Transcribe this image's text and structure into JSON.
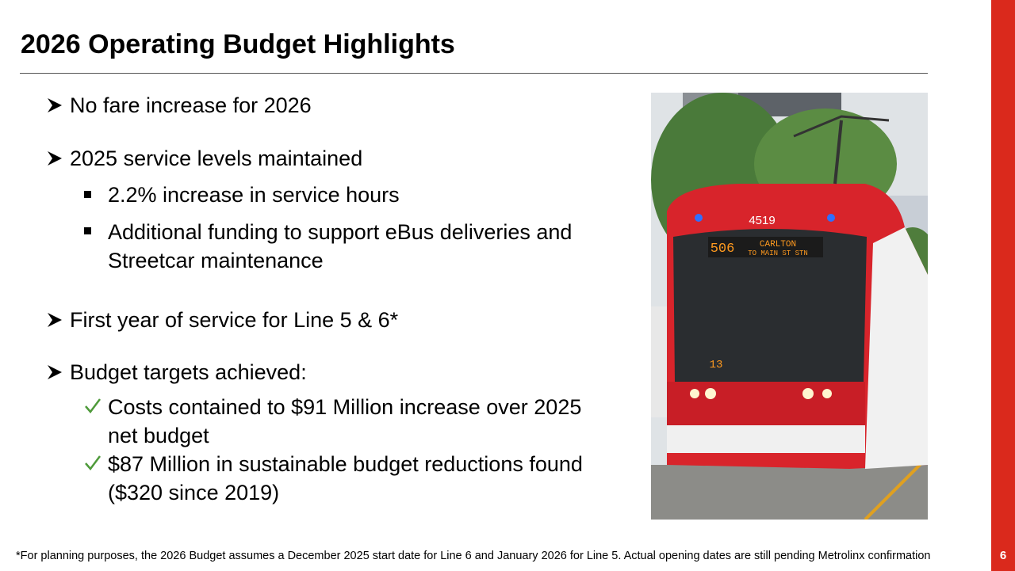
{
  "header": {
    "title": "2026 Operating Budget Highlights"
  },
  "bullets": [
    {
      "text": "No fare increase for 2026"
    },
    {
      "text": "2025 service levels maintained",
      "subs": [
        "2.2% increase in service hours",
        "Additional funding to support eBus deliveries and Streetcar maintenance"
      ]
    },
    {
      "text": "First year of service for Line 5 & 6*"
    },
    {
      "text": "Budget targets achieved:",
      "checks": [
        "Costs contained to $91 Million increase over 2025 net budget",
        "$87 Million in sustainable budget reductions found ($320 since 2019)"
      ]
    }
  ],
  "photo": {
    "fleet_number": "4519",
    "route_number": "506",
    "destination": "CARLTON",
    "destination_sub": "TO MAIN ST STN",
    "run_number": "13"
  },
  "footnote": "*For planning purposes, the 2026 Budget assumes a December 2025 start date for Line 6 and January 2026 for Line 5. Actual opening dates are still pending Metrolinx confirmation",
  "page_number": "6"
}
